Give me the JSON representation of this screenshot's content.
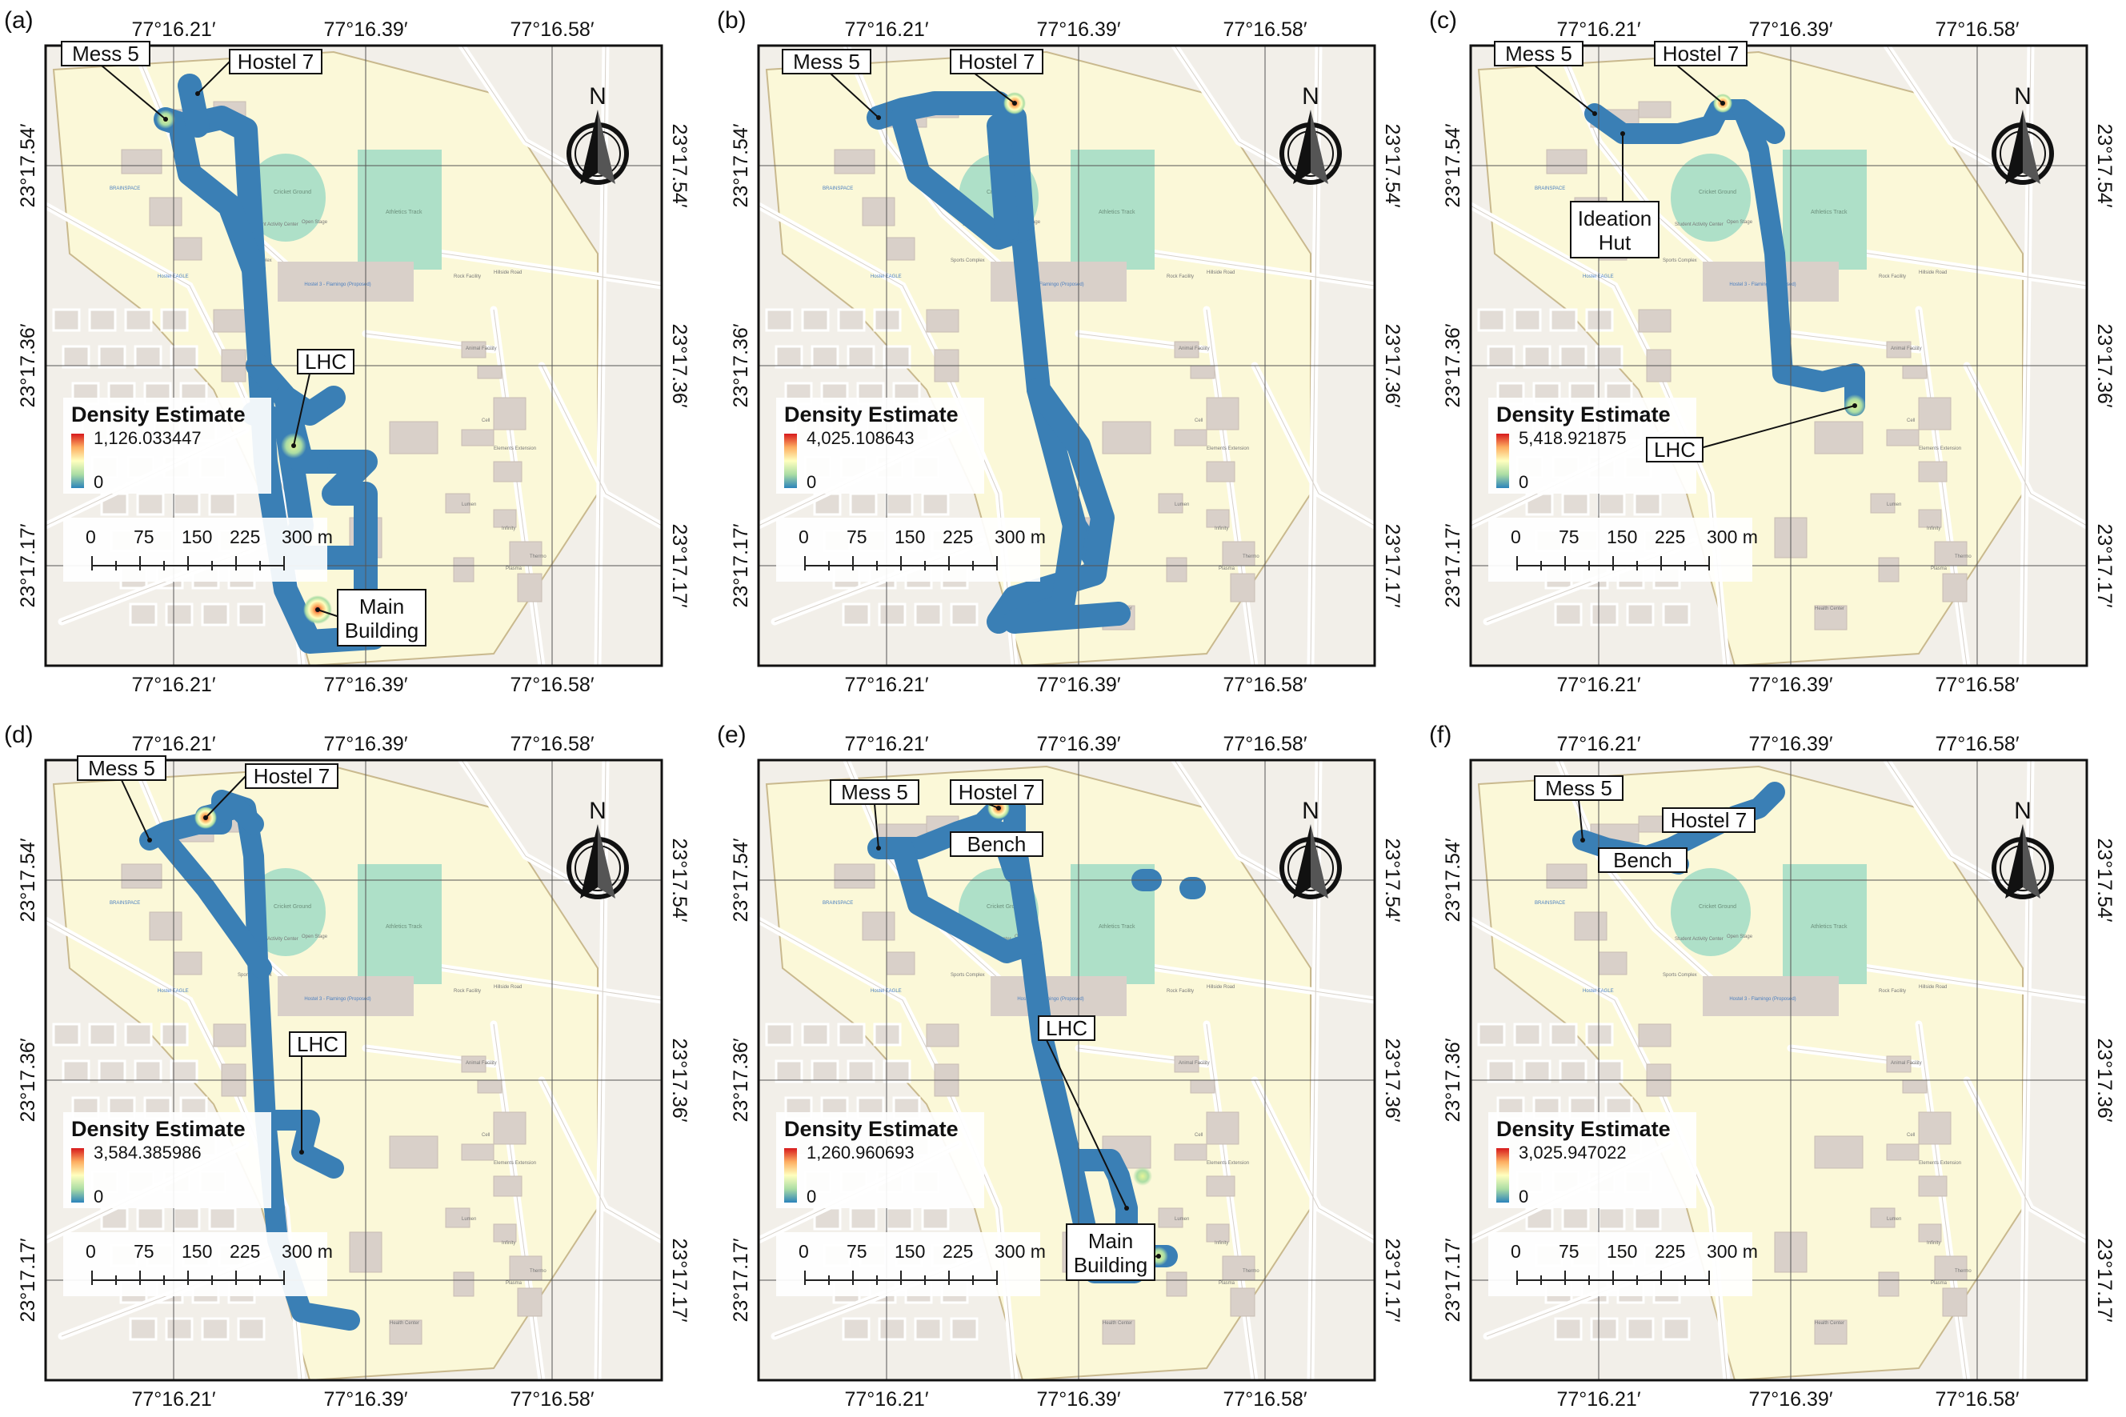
{
  "figure": {
    "lon_ticks": [
      "77°16.21′",
      "77°16.39′",
      "77°16.58′"
    ],
    "lat_ticks": [
      "23°17.54′",
      "23°17.36′",
      "23°17.17′"
    ],
    "north_label": "N",
    "legend_title": "Density Estimate",
    "legend_min": "0",
    "scale_labels": [
      "0",
      "75",
      "150",
      "225",
      "300 m"
    ],
    "colors": {
      "path": "#3a7fb5",
      "map_bg": "#f2efe9",
      "campus": "#fbf8d8",
      "pitch": "#aee0c8",
      "building": "#d9d0c9",
      "road": "#ffffff"
    },
    "map_labels": {
      "cricket": "Cricket Ground",
      "athletics": "Athletics Track",
      "sac": "Student Activity Center",
      "stage": "Open Stage",
      "sports": "Sports Complex",
      "rock": "Rock Facility",
      "hillside": "Hillside Road",
      "flamingo": "Hostel 3 - Flamingo (Proposed)",
      "animal": "Animal Facility",
      "cell": "Cell",
      "elements": "Elements Extension",
      "lumen": "Lumen",
      "infinity": "Infinity",
      "plasma": "Plasma",
      "thermo": "Thermo",
      "health": "Health Center",
      "brainspace": "BRAINSPACE",
      "eagle": "Hostel EAGLE"
    }
  },
  "panels": [
    {
      "panel_label": "(a)",
      "density_max": "1,126.033447",
      "annotations": [
        "Mess 5",
        "Hostel 7",
        "LHC",
        "Main Building"
      ]
    },
    {
      "panel_label": "(b)",
      "density_max": "4,025.108643",
      "annotations": [
        "Mess 5",
        "Hostel 7"
      ]
    },
    {
      "panel_label": "(c)",
      "density_max": "5,418.921875",
      "annotations": [
        "Mess 5",
        "Hostel 7",
        "Ideation Hut",
        "LHC"
      ]
    },
    {
      "panel_label": "(d)",
      "density_max": "3,584.385986",
      "annotations": [
        "Mess 5",
        "Hostel 7",
        "LHC"
      ]
    },
    {
      "panel_label": "(e)",
      "density_max": "1,260.960693",
      "annotations": [
        "Mess 5",
        "Hostel 7",
        "Bench",
        "LHC",
        "Main Building"
      ]
    },
    {
      "panel_label": "(f)",
      "density_max": "3,025.947022",
      "annotations": [
        "Mess 5",
        "Hostel 7",
        "Bench"
      ]
    }
  ]
}
